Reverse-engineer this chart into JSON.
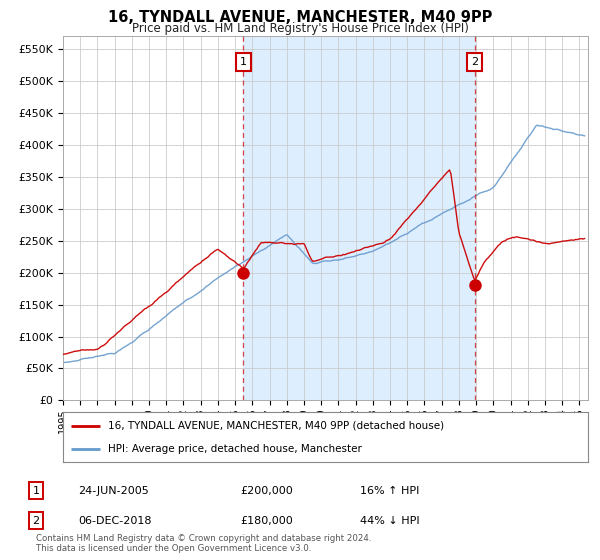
{
  "title": "16, TYNDALL AVENUE, MANCHESTER, M40 9PP",
  "subtitle": "Price paid vs. HM Land Registry's House Price Index (HPI)",
  "ylabel_ticks": [
    "£0",
    "£50K",
    "£100K",
    "£150K",
    "£200K",
    "£250K",
    "£300K",
    "£350K",
    "£400K",
    "£450K",
    "£500K",
    "£550K"
  ],
  "ytick_values": [
    0,
    50000,
    100000,
    150000,
    200000,
    250000,
    300000,
    350000,
    400000,
    450000,
    500000,
    550000
  ],
  "ylim": [
    0,
    570000
  ],
  "xlim_start": 1995.0,
  "xlim_end": 2025.5,
  "marker1_x": 2005.48,
  "marker1_y": 200000,
  "marker2_x": 2018.93,
  "marker2_y": 180000,
  "vline1_x": 2005.48,
  "vline2_x": 2018.93,
  "legend_line1": "16, TYNDALL AVENUE, MANCHESTER, M40 9PP (detached house)",
  "legend_line2": "HPI: Average price, detached house, Manchester",
  "table_row1_num": "1",
  "table_row1_date": "24-JUN-2005",
  "table_row1_price": "£200,000",
  "table_row1_hpi": "16% ↑ HPI",
  "table_row2_num": "2",
  "table_row2_date": "06-DEC-2018",
  "table_row2_price": "£180,000",
  "table_row2_hpi": "44% ↓ HPI",
  "footer": "Contains HM Land Registry data © Crown copyright and database right 2024.\nThis data is licensed under the Open Government Licence v3.0.",
  "line_color_red": "#cc0000",
  "line_color_blue": "#6699cc",
  "vline_color": "#cc3333",
  "shade_color": "#ddeeff",
  "bg_color": "#ffffff",
  "grid_color": "#cccccc",
  "marker_box_color": "#cc0000"
}
